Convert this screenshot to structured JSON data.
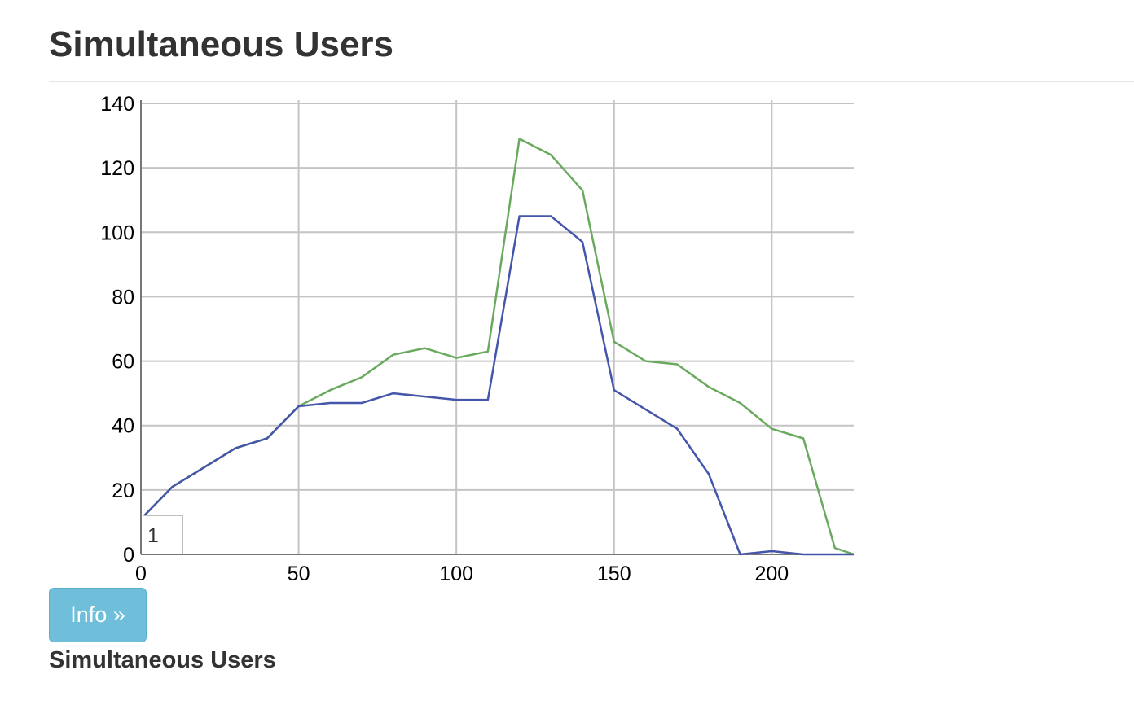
{
  "page": {
    "title": "Simultaneous Users",
    "info_button_label": "Info »",
    "subtitle": "Simultaneous Users",
    "selector_value": "1"
  },
  "colors": {
    "series_green": "#6aaa5e",
    "series_blue": "#4455aa",
    "grid": "#c4c4c4",
    "axis": "#777777",
    "button": "#6fbfdb"
  },
  "chart_data": {
    "type": "line",
    "title": "",
    "xlabel": "",
    "ylabel": "",
    "xlim": [
      0,
      226
    ],
    "ylim": [
      0,
      140
    ],
    "x_ticks": [
      0,
      50,
      100,
      150,
      200
    ],
    "y_ticks": [
      0,
      20,
      40,
      60,
      80,
      100,
      120,
      140
    ],
    "grid": true,
    "legend": "none",
    "series": [
      {
        "color": "#6aaa5e",
        "x": [
          1,
          10,
          20,
          30,
          40,
          50,
          60,
          70,
          80,
          90,
          100,
          110,
          120,
          130,
          140,
          150,
          160,
          170,
          180,
          190,
          200,
          210,
          220,
          226
        ],
        "y": [
          12,
          21,
          27,
          33,
          36,
          46,
          51,
          55,
          62,
          64,
          61,
          63,
          129,
          124,
          113,
          66,
          60,
          59,
          52,
          47,
          39,
          36,
          2,
          0
        ]
      },
      {
        "color": "#4455aa",
        "x": [
          1,
          10,
          20,
          30,
          40,
          50,
          60,
          70,
          80,
          90,
          100,
          110,
          120,
          130,
          140,
          150,
          160,
          170,
          180,
          190,
          200,
          210,
          220,
          226
        ],
        "y": [
          12,
          21,
          27,
          33,
          36,
          46,
          47,
          47,
          50,
          49,
          48,
          48,
          105,
          105,
          97,
          51,
          45,
          39,
          25,
          0,
          1,
          0,
          0,
          0
        ]
      }
    ]
  }
}
